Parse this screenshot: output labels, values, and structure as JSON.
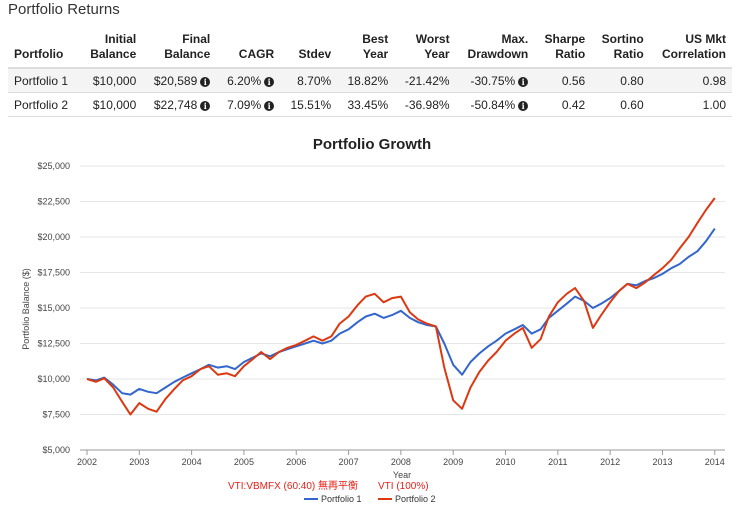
{
  "heading": "Portfolio Returns",
  "table": {
    "headers": [
      [
        "Portfolio"
      ],
      [
        "Initial",
        "Balance"
      ],
      [
        "Final",
        "Balance"
      ],
      [
        "CAGR"
      ],
      [
        "Stdev"
      ],
      [
        "Best",
        "Year"
      ],
      [
        "Worst",
        "Year"
      ],
      [
        "Max.",
        "Drawdown"
      ],
      [
        "Sharpe",
        "Ratio"
      ],
      [
        "Sortino",
        "Ratio"
      ],
      [
        "US Mkt",
        "Correlation"
      ]
    ],
    "rows": [
      {
        "portfolio": "Portfolio 1",
        "initial": "$10,000",
        "final": "$20,589",
        "cagr": "6.20%",
        "stdev": "8.70%",
        "best": "18.82%",
        "worst": "-21.42%",
        "drawdown": "-30.75%",
        "sharpe": "0.56",
        "sortino": "0.80",
        "corr": "0.98"
      },
      {
        "portfolio": "Portfolio 2",
        "initial": "$10,000",
        "final": "$22,748",
        "cagr": "7.09%",
        "stdev": "15.51%",
        "best": "33.45%",
        "worst": "-36.98%",
        "drawdown": "-50.84%",
        "sharpe": "0.42",
        "sortino": "0.60",
        "corr": "1.00"
      }
    ]
  },
  "annotations": [
    "VTI:VBMFX (60:40) 無再平衡",
    "VTI (100%)"
  ],
  "chart_data": {
    "type": "line",
    "title": "Portfolio Growth",
    "xlabel": "Year",
    "ylabel": "Portfolio Balance ($)",
    "x_ticks": [
      "2002",
      "2003",
      "2004",
      "2005",
      "2006",
      "2007",
      "2008",
      "2009",
      "2010",
      "2011",
      "2012",
      "2013",
      "2014"
    ],
    "y_ticks": [
      "$5,000",
      "$7,500",
      "$10,000",
      "$12,500",
      "$15,000",
      "$17,500",
      "$20,000",
      "$22,500",
      "$25,000"
    ],
    "xlim": [
      2002,
      2014.1
    ],
    "ylim": [
      5000,
      25000
    ],
    "grid": true,
    "legend": "bottom",
    "x": [
      2002,
      2002.17,
      2002.33,
      2002.5,
      2002.67,
      2002.83,
      2003,
      2003.17,
      2003.33,
      2003.5,
      2003.67,
      2003.83,
      2004,
      2004.17,
      2004.33,
      2004.5,
      2004.67,
      2004.83,
      2005,
      2005.17,
      2005.33,
      2005.5,
      2005.67,
      2005.83,
      2006,
      2006.17,
      2006.33,
      2006.5,
      2006.67,
      2006.83,
      2007,
      2007.17,
      2007.33,
      2007.5,
      2007.67,
      2007.83,
      2008,
      2008.17,
      2008.33,
      2008.5,
      2008.67,
      2008.83,
      2009,
      2009.17,
      2009.33,
      2009.5,
      2009.67,
      2009.83,
      2010,
      2010.17,
      2010.33,
      2010.5,
      2010.67,
      2010.83,
      2011,
      2011.17,
      2011.33,
      2011.5,
      2011.67,
      2011.83,
      2012,
      2012.17,
      2012.33,
      2012.5,
      2012.67,
      2012.83,
      2013,
      2013.17,
      2013.33,
      2013.5,
      2013.67,
      2013.83,
      2014
    ],
    "series": [
      {
        "name": "Portfolio 1",
        "color": "#3366cc",
        "values": [
          10000,
          9900,
          10100,
          9600,
          9000,
          8900,
          9300,
          9100,
          9000,
          9400,
          9800,
          10100,
          10400,
          10700,
          11000,
          10800,
          10900,
          10700,
          11200,
          11500,
          11800,
          11600,
          11900,
          12100,
          12300,
          12500,
          12700,
          12500,
          12700,
          13200,
          13500,
          14000,
          14400,
          14600,
          14300,
          14500,
          14800,
          14300,
          14000,
          13800,
          13700,
          12500,
          11000,
          10300,
          11200,
          11800,
          12300,
          12700,
          13200,
          13500,
          13800,
          13200,
          13500,
          14300,
          14800,
          15300,
          15800,
          15500,
          15000,
          15300,
          15700,
          16200,
          16700,
          16600,
          16900,
          17100,
          17400,
          17800,
          18100,
          18600,
          19000,
          19700,
          20589
        ]
      },
      {
        "name": "Portfolio 2",
        "color": "#dc3912",
        "values": [
          10000,
          9800,
          10050,
          9400,
          8400,
          7500,
          8300,
          7900,
          7700,
          8600,
          9300,
          9900,
          10200,
          10700,
          10900,
          10300,
          10400,
          10200,
          10900,
          11400,
          11900,
          11400,
          11900,
          12200,
          12400,
          12700,
          13000,
          12700,
          13000,
          13900,
          14400,
          15200,
          15800,
          16000,
          15400,
          15700,
          15800,
          14700,
          14200,
          13900,
          13700,
          10800,
          8500,
          7900,
          9400,
          10500,
          11300,
          11900,
          12700,
          13200,
          13600,
          12200,
          12800,
          14400,
          15400,
          16000,
          16400,
          15500,
          13600,
          14500,
          15400,
          16200,
          16700,
          16400,
          16800,
          17300,
          17800,
          18400,
          19200,
          20000,
          21000,
          21900,
          22748
        ]
      }
    ]
  }
}
